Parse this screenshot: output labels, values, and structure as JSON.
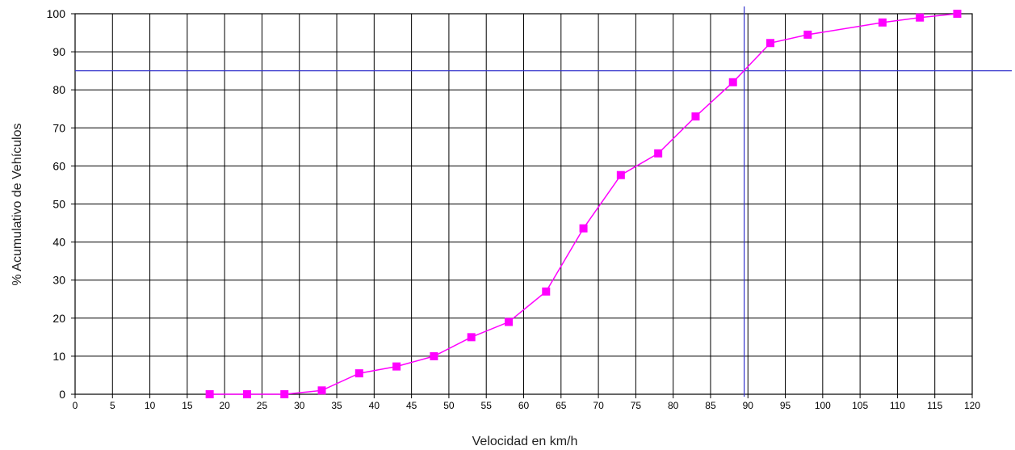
{
  "chart_data": {
    "type": "line",
    "title": "",
    "xlabel": "Velocidad en km/h",
    "ylabel": "% Acumulativo de Vehículos",
    "xlim": [
      0,
      120
    ],
    "ylim": [
      0,
      100
    ],
    "xticks": [
      0,
      5,
      10,
      15,
      20,
      25,
      30,
      35,
      40,
      45,
      50,
      55,
      60,
      65,
      70,
      75,
      80,
      85,
      90,
      95,
      100,
      105,
      110,
      115,
      120
    ],
    "yticks": [
      0,
      10,
      20,
      30,
      40,
      50,
      60,
      70,
      80,
      90,
      100
    ],
    "grid": true,
    "legend": "none",
    "series": [
      {
        "color": "#ff00ff",
        "marker": "square",
        "points": [
          [
            18,
            0
          ],
          [
            23,
            0
          ],
          [
            28,
            0
          ],
          [
            33,
            1
          ],
          [
            38,
            5.5
          ],
          [
            43,
            7.3
          ],
          [
            48,
            10
          ],
          [
            53,
            15
          ],
          [
            58,
            19
          ],
          [
            63,
            27
          ],
          [
            68,
            43.6
          ],
          [
            73,
            57.6
          ],
          [
            78,
            63.3
          ],
          [
            83,
            73
          ],
          [
            88,
            82
          ],
          [
            93,
            92.3
          ],
          [
            98,
            94.5
          ],
          [
            108,
            97.7
          ],
          [
            113,
            99
          ],
          [
            118,
            100
          ]
        ]
      }
    ],
    "reference_lines": [
      {
        "orientation": "horizontal",
        "value": 85,
        "color": "#3333cc"
      },
      {
        "orientation": "vertical",
        "value": 89.5,
        "color": "#3333cc"
      }
    ]
  }
}
